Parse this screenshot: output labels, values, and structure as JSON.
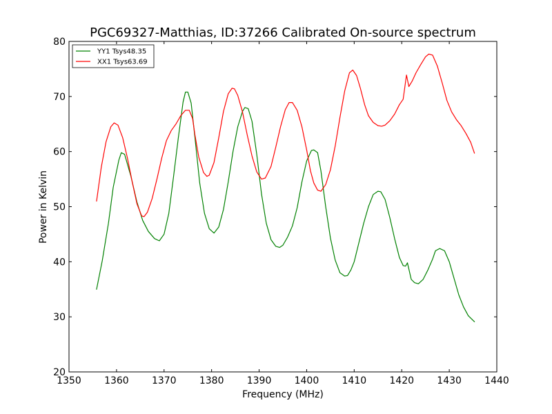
{
  "chart_data": {
    "type": "line",
    "title": "PGC69327-Matthias, ID:37266 Calibrated On-source spectrum",
    "xlabel": "Frequency (MHz)",
    "ylabel": "Power in Kelvin",
    "xlim": [
      1350,
      1440
    ],
    "ylim": [
      20,
      80
    ],
    "xticks": [
      1350,
      1360,
      1370,
      1380,
      1390,
      1400,
      1410,
      1420,
      1430,
      1440
    ],
    "yticks": [
      20,
      30,
      40,
      50,
      60,
      70,
      80
    ],
    "grid": false,
    "legend_position": "top-left",
    "series": [
      {
        "name": "YY1 Tsys48.35",
        "color": "#008000",
        "x": [
          1355.8,
          1357,
          1358.3,
          1359.3,
          1360.5,
          1361,
          1361.7,
          1363,
          1364.3,
          1365.5,
          1366.7,
          1368,
          1369,
          1370,
          1371,
          1372,
          1373,
          1374,
          1374.5,
          1375,
          1375.7,
          1376.5,
          1377.5,
          1378.5,
          1379.5,
          1380.5,
          1381.5,
          1382.5,
          1383.5,
          1384.5,
          1385.5,
          1386.5,
          1387,
          1387.7,
          1388.5,
          1389.5,
          1390.5,
          1391.5,
          1392.5,
          1393.5,
          1394.3,
          1395,
          1396,
          1397,
          1398,
          1399,
          1400,
          1401,
          1401.5,
          1402.3,
          1403,
          1404,
          1405,
          1406,
          1407,
          1408,
          1408.6,
          1409.3,
          1410,
          1411,
          1412,
          1413,
          1414,
          1415,
          1415.6,
          1416.5,
          1417.5,
          1418.5,
          1419.5,
          1420.3,
          1420.8,
          1421.2,
          1422,
          1422.7,
          1423.5,
          1424.5,
          1425.5,
          1426.5,
          1427.1,
          1428,
          1429,
          1430,
          1431,
          1432,
          1433,
          1434,
          1435.3
        ],
        "values": [
          35.0,
          40.2,
          47.0,
          53.5,
          58.5,
          59.8,
          59.5,
          55.6,
          50.8,
          47.5,
          45.5,
          44.2,
          43.8,
          45.0,
          48.8,
          55.5,
          62.5,
          69.0,
          70.8,
          70.8,
          68.8,
          62.5,
          54.3,
          48.8,
          46.0,
          45.2,
          46.3,
          49.5,
          54.5,
          60.0,
          64.5,
          67.3,
          68.0,
          67.8,
          65.5,
          59.5,
          52.3,
          47.0,
          44.0,
          42.8,
          42.6,
          43.0,
          44.5,
          46.5,
          49.8,
          54.5,
          58.3,
          60.2,
          60.3,
          59.8,
          56.5,
          50.0,
          44.3,
          40.3,
          38.0,
          37.4,
          37.5,
          38.5,
          40.0,
          43.5,
          47.0,
          50.0,
          52.2,
          52.8,
          52.7,
          51.3,
          48.0,
          44.2,
          40.8,
          39.3,
          39.2,
          39.8,
          36.8,
          36.2,
          36.0,
          36.8,
          38.5,
          40.5,
          42.0,
          42.4,
          42.0,
          40.0,
          37.0,
          34.0,
          31.8,
          30.2,
          29.1
        ]
      },
      {
        "name": "XX1 Tsys63.69",
        "color": "#ff0000",
        "x": [
          1355.8,
          1356.8,
          1357.8,
          1358.8,
          1359.5,
          1360.3,
          1361.3,
          1362.3,
          1363.3,
          1364.3,
          1365.3,
          1365.8,
          1366.5,
          1367.5,
          1368.5,
          1369.5,
          1370.5,
          1371.5,
          1372.5,
          1373.5,
          1374.5,
          1375.3,
          1376,
          1376.5,
          1377.3,
          1378.3,
          1379,
          1379.5,
          1380.5,
          1381.5,
          1382.5,
          1383.5,
          1384.3,
          1384.8,
          1385.5,
          1386.5,
          1387.5,
          1388.5,
          1389.5,
          1390.5,
          1391.3,
          1392.5,
          1393.5,
          1394.5,
          1395.5,
          1396.3,
          1397,
          1398,
          1399,
          1400,
          1400.8,
          1401.5,
          1402.3,
          1403,
          1404,
          1405,
          1406,
          1407,
          1408,
          1409,
          1409.7,
          1410.5,
          1411.3,
          1412.2,
          1413,
          1414,
          1415,
          1415.8,
          1416.5,
          1417.5,
          1418.5,
          1419.5,
          1420.3,
          1421,
          1421.5,
          1422.2,
          1423,
          1424,
          1425,
          1425.7,
          1426.5,
          1427.5,
          1428.5,
          1429.5,
          1430.5,
          1431.5,
          1432.5,
          1433.5,
          1434.5,
          1435.3
        ],
        "values": [
          51.0,
          57.2,
          61.8,
          64.5,
          65.2,
          64.8,
          62.5,
          58.8,
          54.5,
          50.5,
          48.3,
          48.2,
          49.0,
          51.5,
          55.0,
          58.8,
          62.0,
          63.8,
          65.0,
          66.5,
          67.5,
          67.5,
          66.0,
          63.0,
          59.0,
          56.2,
          55.5,
          55.7,
          58.0,
          62.5,
          67.3,
          70.5,
          71.5,
          71.4,
          70.2,
          67.2,
          63.0,
          59.2,
          56.3,
          55.0,
          55.2,
          57.3,
          60.8,
          64.5,
          67.6,
          68.9,
          68.9,
          67.5,
          64.5,
          60.3,
          56.5,
          54.3,
          53.0,
          52.8,
          54.0,
          56.7,
          61.0,
          66.2,
          71.0,
          74.3,
          74.8,
          73.8,
          71.5,
          68.5,
          66.5,
          65.3,
          64.7,
          64.6,
          64.8,
          65.6,
          66.8,
          68.5,
          69.5,
          73.9,
          71.8,
          72.8,
          74.3,
          75.8,
          77.2,
          77.7,
          77.5,
          75.5,
          72.5,
          69.3,
          67.2,
          65.8,
          64.7,
          63.3,
          61.7,
          59.7
        ]
      }
    ]
  }
}
